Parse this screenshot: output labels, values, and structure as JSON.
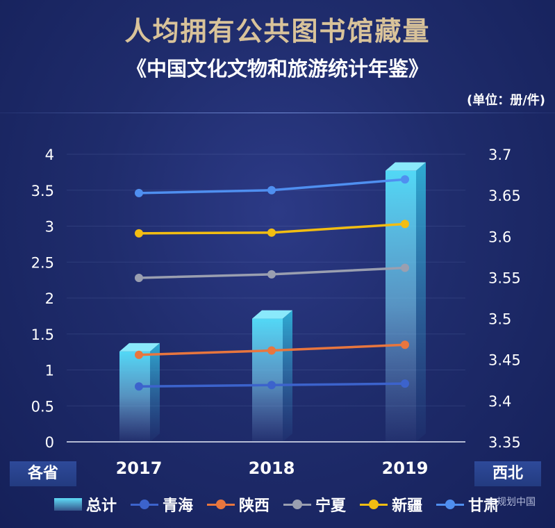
{
  "title": "人均拥有公共图书馆藏量",
  "subtitle": "《中国文化文物和旅游统计年鉴》",
  "unit": "(单位：册/件)",
  "left_axis_label": "各省",
  "right_axis_label": "西北",
  "watermark": "规划中国",
  "colors": {
    "bar": "#3fcdf0",
    "青海": "#3c63cc",
    "陕西": "#e8763e",
    "宁夏": "#9a9fb0",
    "新疆": "#f2bd12",
    "甘肃": "#4f8ff0"
  },
  "chart_data": {
    "type": "bar+line",
    "categories": [
      "2017",
      "2018",
      "2019"
    ],
    "left_axis": {
      "ylim": [
        0,
        4
      ],
      "ticks": [
        "0",
        "0.5",
        "1",
        "1.5",
        "2",
        "2.5",
        "3",
        "3.5",
        "4"
      ]
    },
    "right_axis": {
      "ylim": [
        3.35,
        3.7
      ],
      "ticks": [
        "3.35",
        "3.4",
        "3.45",
        "3.5",
        "3.55",
        "3.6",
        "3.65",
        "3.7"
      ]
    },
    "series": [
      {
        "name": "总计",
        "kind": "bar",
        "axis": "right",
        "values": [
          3.46,
          3.5,
          3.68
        ]
      },
      {
        "name": "青海",
        "kind": "line",
        "axis": "left",
        "values": [
          0.77,
          0.79,
          0.81
        ]
      },
      {
        "name": "陕西",
        "kind": "line",
        "axis": "left",
        "values": [
          1.21,
          1.27,
          1.35
        ]
      },
      {
        "name": "宁夏",
        "kind": "line",
        "axis": "left",
        "values": [
          2.28,
          2.33,
          2.42
        ]
      },
      {
        "name": "新疆",
        "kind": "line",
        "axis": "left",
        "values": [
          2.9,
          2.91,
          3.03
        ]
      },
      {
        "name": "甘肃",
        "kind": "line",
        "axis": "left",
        "values": [
          3.46,
          3.5,
          3.65
        ]
      }
    ],
    "legend": [
      "总计",
      "青海",
      "陕西",
      "宁夏",
      "新疆",
      "甘肃"
    ]
  }
}
